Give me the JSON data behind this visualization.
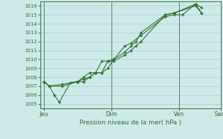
{
  "background_color": "#cceaea",
  "grid_color": "#aacccc",
  "line_color": "#2d6e2d",
  "marker_color": "#2d6e2d",
  "xlabel": "Pression niveau de la mer( hPa )",
  "ylim": [
    1004.5,
    1016.5
  ],
  "yticks": [
    1005,
    1006,
    1007,
    1008,
    1009,
    1010,
    1011,
    1012,
    1013,
    1014,
    1015,
    1016
  ],
  "xtick_labels": [
    "Jeu",
    "Dim",
    "Ven",
    "Sam"
  ],
  "xtick_positions": [
    0.0,
    0.333,
    0.667,
    0.875
  ],
  "vline_positions": [
    0.0,
    0.333,
    0.667,
    0.875
  ],
  "series": [
    {
      "x": [
        0.0,
        0.025,
        0.05,
        0.075,
        0.13,
        0.165,
        0.195,
        0.225,
        0.255,
        0.285,
        0.315,
        0.345,
        0.4,
        0.43,
        0.48,
        0.6,
        0.645,
        0.685,
        0.75,
        0.78
      ],
      "y": [
        1007.5,
        1007.0,
        1006.0,
        1005.2,
        1007.4,
        1007.5,
        1008.0,
        1008.5,
        1008.5,
        1009.8,
        1009.8,
        1010.0,
        1011.5,
        1011.8,
        1012.7,
        1014.8,
        1015.0,
        1015.0,
        1016.2,
        1015.8
      ]
    },
    {
      "x": [
        0.0,
        0.025,
        0.09,
        0.165,
        0.195,
        0.225,
        0.255,
        0.285,
        0.315,
        0.345,
        0.4,
        0.43,
        0.455,
        0.48,
        0.6,
        0.645,
        0.75,
        0.78
      ],
      "y": [
        1007.5,
        1007.0,
        1007.0,
        1007.5,
        1007.5,
        1008.0,
        1008.5,
        1008.5,
        1009.8,
        1009.8,
        1010.5,
        1011.0,
        1011.5,
        1012.0,
        1015.0,
        1015.2,
        1016.0,
        1015.2
      ]
    },
    {
      "x": [
        0.0,
        0.025,
        0.09,
        0.165,
        0.195,
        0.225,
        0.255,
        0.285,
        0.315,
        0.345,
        0.4,
        0.43,
        0.455,
        0.48,
        0.6,
        0.645,
        0.75,
        0.78
      ],
      "y": [
        1007.5,
        1007.0,
        1007.2,
        1007.5,
        1007.8,
        1008.0,
        1008.5,
        1008.5,
        1009.0,
        1010.0,
        1010.8,
        1011.5,
        1012.0,
        1013.0,
        1015.0,
        1015.2,
        1016.2,
        1015.2
      ]
    }
  ]
}
